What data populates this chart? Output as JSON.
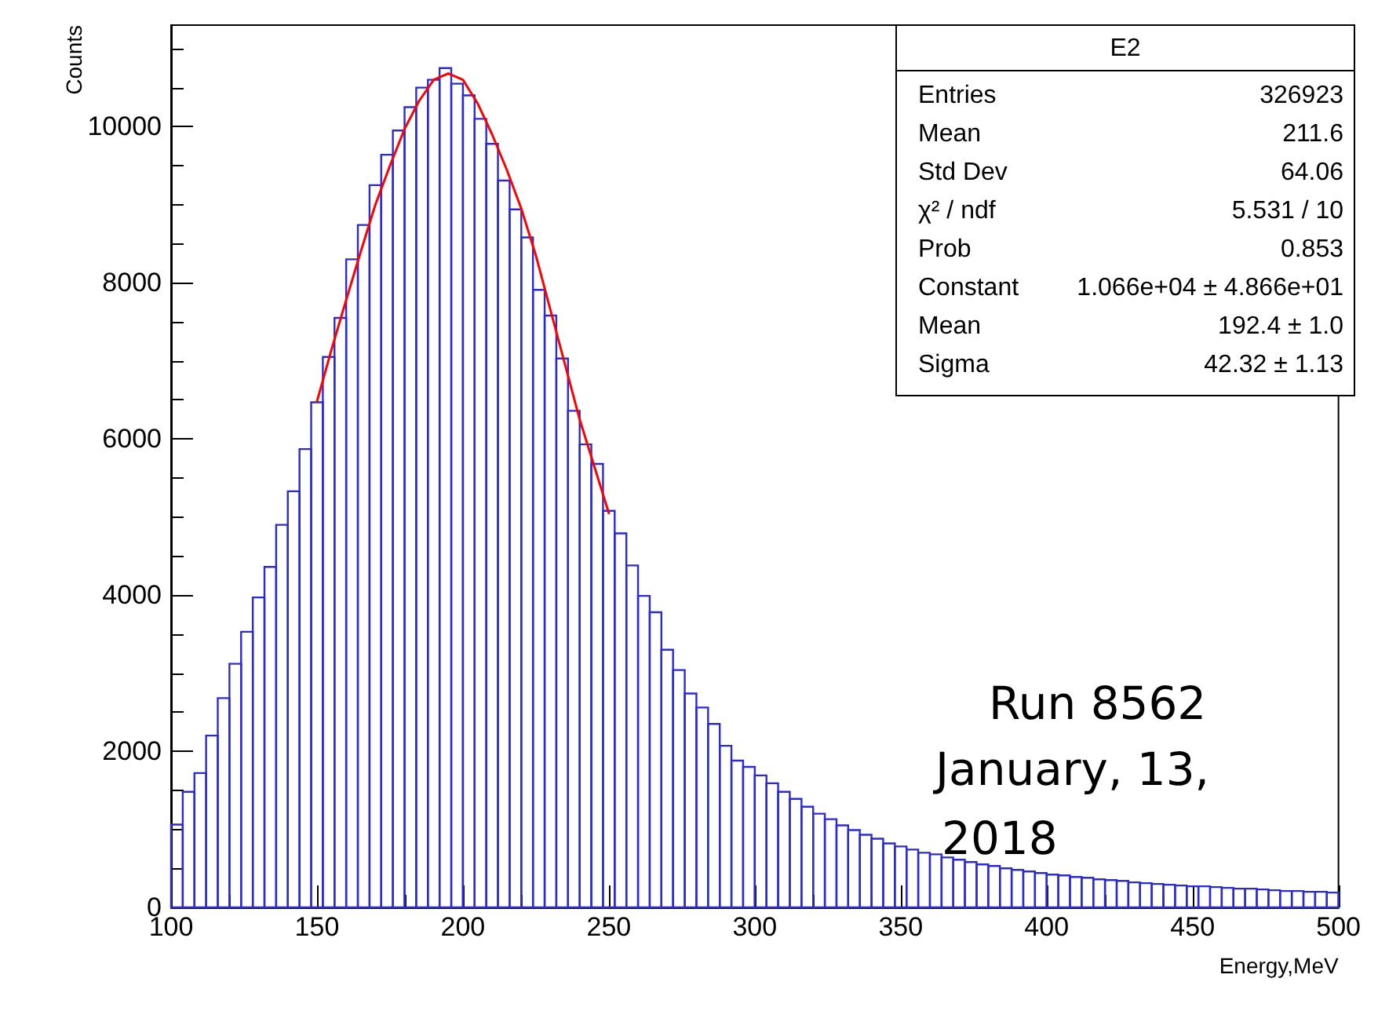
{
  "chart_data": {
    "type": "histogram",
    "xlabel": "Energy,MeV",
    "ylabel": "Counts",
    "bins": [
      100,
      104,
      108,
      112,
      116,
      120,
      124,
      128,
      132,
      136,
      140,
      144,
      148,
      152,
      156,
      160,
      164,
      168,
      172,
      176,
      180,
      184,
      188,
      192,
      196,
      200,
      204,
      208,
      212,
      216,
      220,
      224,
      228,
      232,
      236,
      240,
      244,
      248,
      252,
      256,
      260,
      264,
      268,
      272,
      276,
      280,
      284,
      288,
      292,
      296,
      300,
      304,
      308,
      312,
      316,
      320,
      324,
      328,
      332,
      336,
      340,
      344,
      348,
      352,
      356,
      360,
      364,
      368,
      372,
      376,
      380,
      384,
      388,
      392,
      396,
      400,
      404,
      408,
      412,
      416,
      420,
      424,
      428,
      432,
      436,
      440,
      444,
      448,
      452,
      456,
      460,
      464,
      468,
      472,
      476,
      480,
      484,
      488,
      492,
      496,
      500
    ],
    "series": [
      {
        "color": "#2b2bd6",
        "values": [
          1060,
          1480,
          1720,
          2200,
          2680,
          3120,
          3530,
          3970,
          4360,
          4900,
          5330,
          5870,
          6470,
          7050,
          7550,
          8300,
          8740,
          9250,
          9640,
          9950,
          10250,
          10500,
          10600,
          10750,
          10550,
          10400,
          10100,
          9780,
          9310,
          8940,
          8580,
          7910,
          7580,
          7030,
          6360,
          5930,
          5680,
          5080,
          4790,
          4380,
          3990,
          3780,
          3300,
          3040,
          2740,
          2560,
          2350,
          2070,
          1880,
          1800,
          1690,
          1590,
          1480,
          1390,
          1290,
          1200,
          1130,
          1050,
          990,
          930,
          880,
          820,
          780,
          740,
          700,
          680,
          640,
          610,
          580,
          550,
          530,
          500,
          480,
          460,
          440,
          420,
          410,
          390,
          380,
          360,
          350,
          340,
          320,
          310,
          300,
          290,
          280,
          270,
          270,
          260,
          250,
          240,
          240,
          230,
          220,
          210,
          210,
          200,
          200,
          190
        ]
      },
      {
        "type": "line",
        "color": "#ff0000",
        "x": [
          150,
          155,
          160,
          165,
          170,
          175,
          180,
          185,
          190,
          195,
          200,
          205,
          210,
          215,
          220,
          225,
          230,
          235,
          240,
          245,
          250
        ],
        "values": [
          6480,
          7150,
          7780,
          8400,
          9000,
          9500,
          9970,
          10330,
          10600,
          10680,
          10600,
          10300,
          9900,
          9450,
          8950,
          8350,
          7650,
          6950,
          6250,
          5650,
          5050
        ]
      }
    ],
    "xlim": [
      100,
      500
    ],
    "xticks": [
      100,
      150,
      200,
      250,
      300,
      350,
      400,
      450,
      500
    ],
    "ylim": [
      0,
      11300
    ],
    "yticks": [
      0,
      2000,
      4000,
      6000,
      8000,
      10000
    ],
    "grid": false,
    "marker": "none",
    "line_style": "solid",
    "annotations": [
      "E2",
      "Entries",
      "326923",
      "Mean",
      "211.6",
      "Std Dev",
      "64.06",
      "χ² / ndf",
      "5.531 / 10",
      "Prob",
      "0.853",
      "Constant",
      "1.066e+04 ± 4.866e+01",
      "Mean",
      "192.4 ± 1.0",
      "Sigma",
      "42.32 ± 1.13",
      "Run 8562",
      "January, 13,",
      "2018"
    ]
  }
}
